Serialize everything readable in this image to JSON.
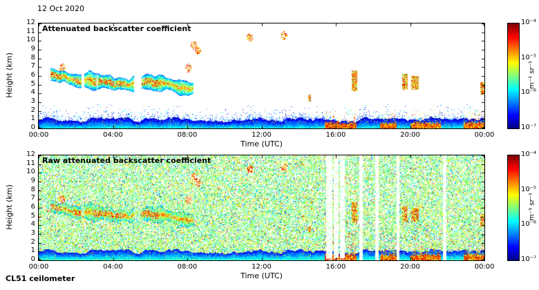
{
  "figure": {
    "date": "12 Oct 2020",
    "instrument": "CL51 ceilometer",
    "background": "#ffffff"
  },
  "chart_data": [
    {
      "type": "heatmap",
      "title": "Attenuated backscatter coefficient",
      "xlabel": "Time (UTC)",
      "ylabel": "Height (km)",
      "x_ticks": [
        "00:00",
        "04:00",
        "08:00",
        "12:00",
        "16:00",
        "20:00",
        "00:00"
      ],
      "x_range_hours": [
        0,
        24
      ],
      "y_ticks": [
        0,
        1,
        2,
        3,
        4,
        5,
        6,
        7,
        8,
        9,
        10,
        11,
        12
      ],
      "y_range_km": [
        0,
        12
      ],
      "grid": false,
      "style": "clean",
      "colorbar": {
        "colormap": "jet",
        "scale": "log",
        "range_min": "1e-7",
        "range_max": "1e-4",
        "tick_labels": [
          "10⁻⁴",
          "10⁻⁵",
          "10⁻⁶",
          "10⁻⁷"
        ],
        "unit": "m⁻¹ sr⁻¹"
      },
      "features": {
        "boundary_layer_top_km": 1.3,
        "aerosol_layer": {
          "start_h": 0.6,
          "end_h": 8.3,
          "center_start_km": 5.9,
          "center_end_km": 4.6
        },
        "cloud_streaks": [
          [
            16.85,
            17.12,
            4.3,
            6.6
          ],
          [
            19.55,
            19.85,
            4.4,
            6.2
          ],
          [
            20.05,
            20.45,
            4.4,
            6.0
          ],
          [
            23.75,
            24.0,
            3.9,
            5.3
          ],
          [
            14.5,
            14.65,
            3.1,
            3.9
          ]
        ],
        "high_cloud_dots": [
          [
            1.25,
            6.95
          ],
          [
            8.05,
            6.9
          ],
          [
            8.35,
            9.5
          ],
          [
            8.55,
            8.9
          ],
          [
            11.35,
            10.4
          ],
          [
            13.2,
            10.6
          ]
        ],
        "precip_intervals": [
          [
            15.4,
            17.1
          ],
          [
            18.35,
            19.25
          ],
          [
            20.0,
            21.65
          ],
          [
            22.85,
            24.0
          ]
        ]
      }
    },
    {
      "type": "heatmap",
      "title": "Raw attenuated backscatter coefficient",
      "xlabel": "Time (UTC)",
      "ylabel": "Height (km)",
      "x_ticks": [
        "00:00",
        "04:00",
        "08:00",
        "12:00",
        "16:00",
        "20:00",
        "00:00"
      ],
      "x_range_hours": [
        0,
        24
      ],
      "y_ticks": [
        0,
        1,
        2,
        3,
        4,
        5,
        6,
        7,
        8,
        9,
        10,
        11,
        12
      ],
      "y_range_km": [
        0,
        12
      ],
      "grid": false,
      "style": "raw",
      "colorbar": {
        "colormap": "jet",
        "scale": "log",
        "range_min": "1e-7",
        "range_max": "1e-4",
        "tick_labels": [
          "10⁻⁴",
          "10⁻⁵",
          "10⁻⁶",
          "10⁻⁷"
        ],
        "unit": "m⁻¹ sr⁻¹"
      },
      "features": {
        "noise_density": 0.6,
        "boundary_layer_top_km": 1.3,
        "aerosol_layer": {
          "start_h": 0.6,
          "end_h": 8.3,
          "center_start_km": 5.9,
          "center_end_km": 4.6
        },
        "cloud_streaks": [
          [
            16.85,
            17.12,
            4.3,
            6.6
          ],
          [
            19.55,
            19.85,
            4.4,
            6.2
          ],
          [
            20.05,
            20.45,
            4.4,
            6.0
          ],
          [
            23.75,
            24.0,
            3.9,
            5.3
          ],
          [
            14.5,
            14.65,
            3.1,
            3.9
          ]
        ],
        "high_cloud_dots": [
          [
            1.25,
            6.95
          ],
          [
            8.05,
            6.9
          ],
          [
            8.35,
            9.5
          ],
          [
            8.55,
            8.9
          ],
          [
            11.35,
            10.4
          ],
          [
            13.2,
            10.6
          ]
        ],
        "precip_intervals": [
          [
            15.4,
            17.1
          ],
          [
            18.35,
            19.25
          ],
          [
            20.0,
            21.65
          ],
          [
            22.85,
            24.0
          ]
        ],
        "white_stripes": [
          [
            15.45,
            15.78
          ],
          [
            15.88,
            16.14
          ],
          [
            16.2,
            16.46
          ],
          [
            17.26,
            17.42
          ],
          [
            18.12,
            18.3
          ],
          [
            19.26,
            19.42
          ],
          [
            21.76,
            21.92
          ]
        ]
      }
    }
  ]
}
